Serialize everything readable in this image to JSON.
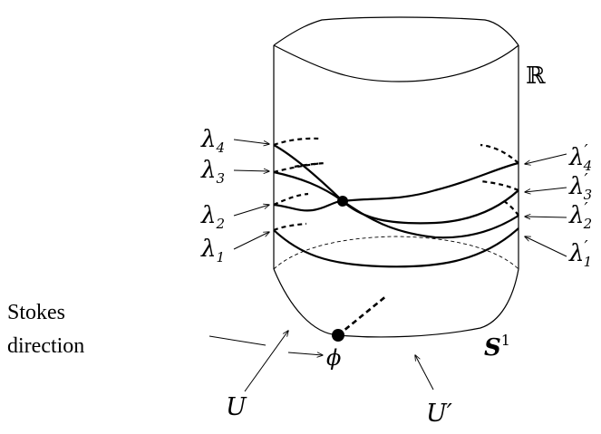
{
  "labels": {
    "lambda1": {
      "main": "λ",
      "sub": "1"
    },
    "lambda2": {
      "main": "λ",
      "sub": "2"
    },
    "lambda3": {
      "main": "λ",
      "sub": "3"
    },
    "lambda4": {
      "main": "λ",
      "sub": "4"
    },
    "lambda1p": {
      "main": "λ",
      "sub": "1",
      "prime": "′"
    },
    "lambda2p": {
      "main": "λ",
      "sub": "2",
      "prime": "′"
    },
    "lambda3p": {
      "main": "λ",
      "sub": "3",
      "prime": "′"
    },
    "lambda4p": {
      "main": "λ",
      "sub": "4",
      "prime": "′"
    },
    "reals": "ℝ",
    "circle": {
      "main": "S",
      "sup": "1"
    },
    "phi": "ϕ",
    "U": "U",
    "Uprime": "U′",
    "stokes_line1": "Stokes",
    "stokes_line2": "direction"
  }
}
